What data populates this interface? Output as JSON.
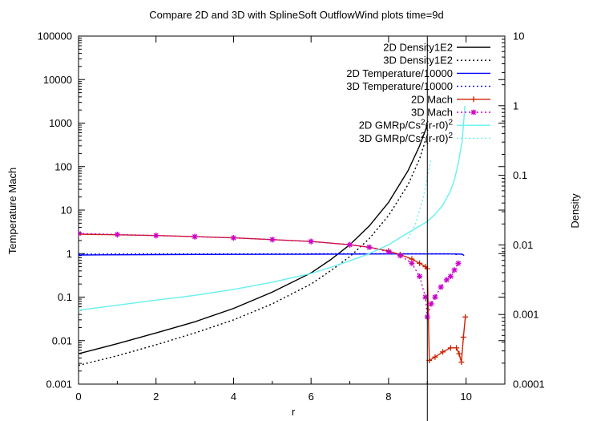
{
  "chart_data": {
    "type": "line",
    "title": "Compare 2D and 3D with SplineSoft OutflowWind plots time=9d",
    "xlabel": "r",
    "ylabel": "Temperature  Mach",
    "y2label": "Density",
    "xlim": [
      0,
      11
    ],
    "ylim": [
      0.001,
      100000
    ],
    "y2lim": [
      0.0001,
      10
    ],
    "yscale": "log",
    "y2scale": "log",
    "grid": false,
    "legend_position": "top-right",
    "xticks": [
      "0",
      "2",
      "4",
      "6",
      "8",
      "10"
    ],
    "yticks": [
      "0.001",
      "0.01",
      "0.1",
      "1",
      "10",
      "100",
      "1000",
      "10000",
      "100000"
    ],
    "y2ticks": [
      "0.0001",
      "0.001",
      "0.01",
      "0.1",
      "1",
      "10"
    ],
    "vline_x": 9.0,
    "colors": {
      "black": "#000000",
      "blue": "#0000ff",
      "red": "#cc2200",
      "magenta": "#cc00cc",
      "cyan": "#66f0f0"
    },
    "series": [
      {
        "name": "2D Density1E2",
        "color": "#000000",
        "dash": "solid",
        "marker": "none",
        "x": [
          0,
          1,
          2,
          3,
          4,
          5,
          6,
          6.5,
          7,
          7.5,
          8,
          8.5,
          8.8,
          9.0
        ],
        "y": [
          0.005,
          0.0085,
          0.015,
          0.027,
          0.055,
          0.13,
          0.36,
          0.72,
          1.6,
          4.3,
          15,
          80,
          300,
          900
        ]
      },
      {
        "name": "3D Density1E2",
        "color": "#000000",
        "dash": "dotted",
        "marker": "none",
        "x": [
          0,
          1,
          2,
          3,
          4,
          5,
          6,
          6.5,
          7,
          7.5,
          8,
          8.5,
          8.8,
          8.95
        ],
        "y": [
          0.0027,
          0.0045,
          0.008,
          0.015,
          0.03,
          0.07,
          0.2,
          0.4,
          0.85,
          2.2,
          7.5,
          38,
          150,
          400
        ]
      },
      {
        "name": "2D Temperature/10000",
        "color": "#0000ff",
        "dash": "solid",
        "marker": "none",
        "x": [
          0,
          2,
          4,
          6,
          8,
          9,
          9.7,
          9.9,
          9.95
        ],
        "y": [
          0.93,
          0.95,
          0.96,
          0.97,
          0.98,
          0.98,
          0.98,
          0.97,
          0.9
        ]
      },
      {
        "name": "3D Temperature/10000",
        "color": "#0000ff",
        "dash": "dotted",
        "marker": "none",
        "x": [
          0,
          2,
          4,
          6,
          8,
          9,
          9.6,
          9.8
        ],
        "y": [
          0.97,
          0.98,
          0.98,
          0.99,
          0.99,
          0.99,
          0.99,
          0.95
        ]
      },
      {
        "name": "2D Mach",
        "color": "#cc2200",
        "dash": "solid",
        "marker": "plus",
        "x": [
          0,
          1,
          2,
          3,
          4,
          5,
          6,
          7,
          7.5,
          8,
          8.3,
          8.6,
          8.8,
          8.95,
          9.0,
          9.05,
          9.2,
          9.4,
          9.6,
          9.75,
          9.82,
          9.88,
          9.93,
          9.98
        ],
        "y": [
          2.8,
          2.7,
          2.6,
          2.45,
          2.3,
          2.1,
          1.9,
          1.6,
          1.4,
          1.15,
          0.95,
          0.75,
          0.6,
          0.5,
          0.45,
          0.0035,
          0.0042,
          0.0055,
          0.0068,
          0.0068,
          0.005,
          0.0032,
          0.012,
          0.035
        ]
      },
      {
        "name": "3D Mach",
        "color": "#cc00cc",
        "dash": "dotted",
        "marker": "star",
        "x": [
          0,
          1,
          2,
          3,
          4,
          5,
          6,
          7,
          7.5,
          8,
          8.3,
          8.6,
          8.8,
          8.95,
          9.0,
          9.1,
          9.2,
          9.35,
          9.5,
          9.6,
          9.7,
          9.8
        ],
        "y": [
          2.9,
          2.75,
          2.6,
          2.45,
          2.3,
          2.1,
          1.9,
          1.6,
          1.4,
          1.1,
          0.9,
          0.6,
          0.3,
          0.1,
          0.035,
          0.07,
          0.1,
          0.17,
          0.25,
          0.3,
          0.42,
          0.6
        ]
      },
      {
        "name": "2D GMRp/Cs^2(r-r0)^2",
        "color": "#66f0f0",
        "dash": "solid",
        "marker": "none",
        "x": [
          0,
          1,
          2,
          3,
          4,
          5,
          6,
          6.5,
          7,
          7.5,
          8,
          8.5,
          8.8,
          9.0,
          9.2,
          9.4,
          9.6,
          9.7,
          9.8,
          9.9,
          9.97
        ],
        "y": [
          0.05,
          0.065,
          0.085,
          0.11,
          0.15,
          0.22,
          0.35,
          0.48,
          0.68,
          1.0,
          1.6,
          3.0,
          4.3,
          5.5,
          8.0,
          13,
          28,
          50,
          120,
          400,
          2500
        ]
      },
      {
        "name": "3D GMRp/Cs^2(r-r0)^2",
        "color": "#66f0f0",
        "dash": "dotted",
        "marker": "none",
        "x": [
          8.5,
          8.7,
          8.9,
          9.0,
          9.1
        ],
        "y": [
          2.2,
          5,
          20,
          60,
          150
        ]
      }
    ]
  }
}
